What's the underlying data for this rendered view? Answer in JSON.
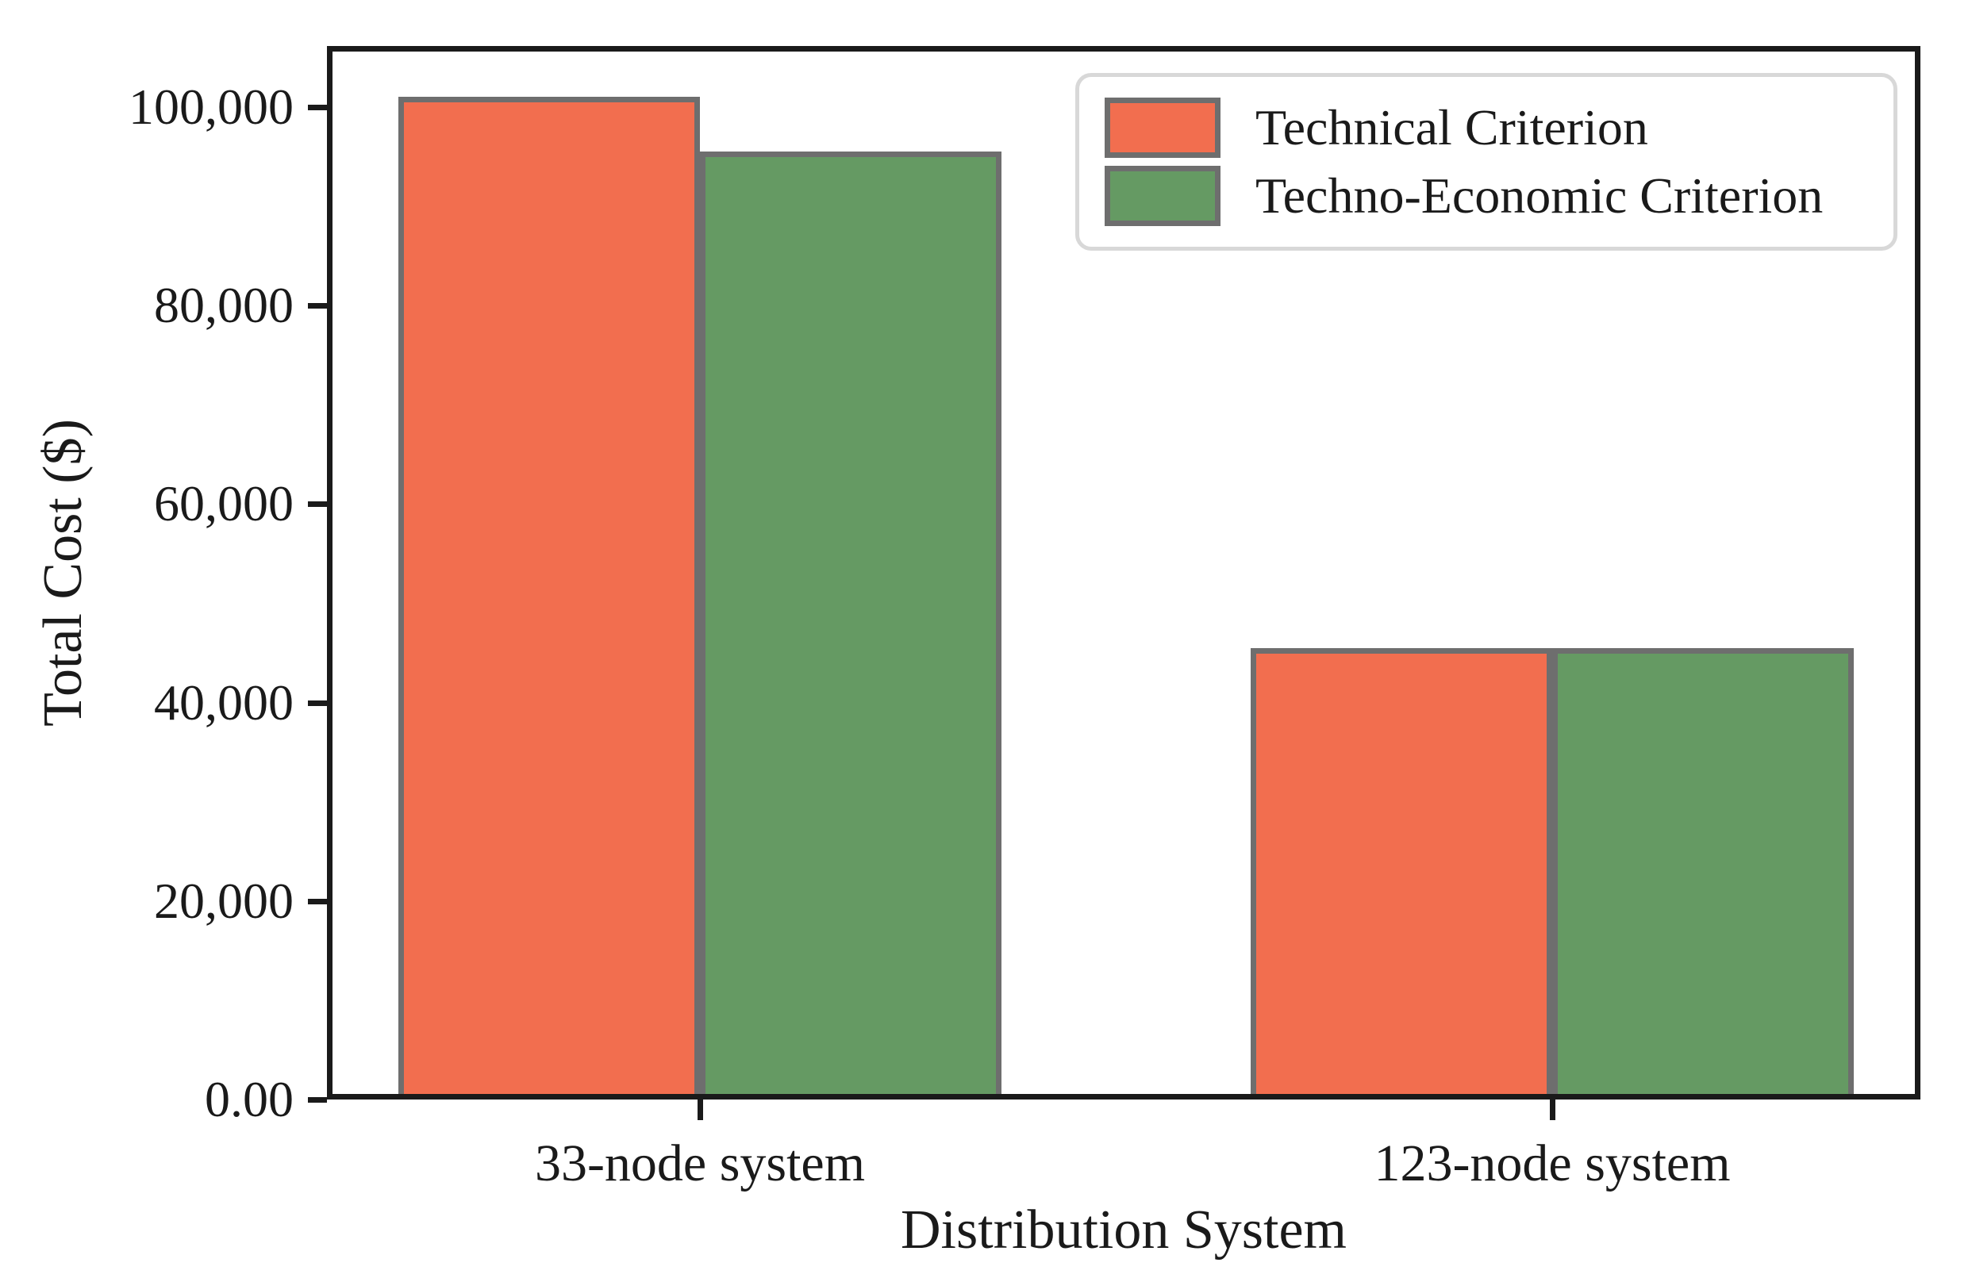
{
  "chart_data": {
    "type": "bar",
    "title": "",
    "xlabel": "Distribution System",
    "ylabel": "Total Cost ($)",
    "categories": [
      "33-node system",
      "123-node system"
    ],
    "series": [
      {
        "name": "Technical Criterion",
        "color": "#f26e4f",
        "values": [
          101000,
          45500
        ]
      },
      {
        "name": "Techno-Economic Criterion",
        "color": "#659a63",
        "values": [
          95500,
          45500
        ]
      }
    ],
    "yticks": [
      {
        "value": 0,
        "label": "0.00"
      },
      {
        "value": 20000,
        "label": "20,000"
      },
      {
        "value": 40000,
        "label": "40,000"
      },
      {
        "value": 60000,
        "label": "60,000"
      },
      {
        "value": 80000,
        "label": "80,000"
      },
      {
        "value": 100000,
        "label": "100,000"
      }
    ],
    "ylim": [
      0,
      106000
    ],
    "grid": false,
    "legend_position": "upper right",
    "bar_edge_color": "#6e6e6e",
    "spine_color": "#1a1a1a"
  }
}
